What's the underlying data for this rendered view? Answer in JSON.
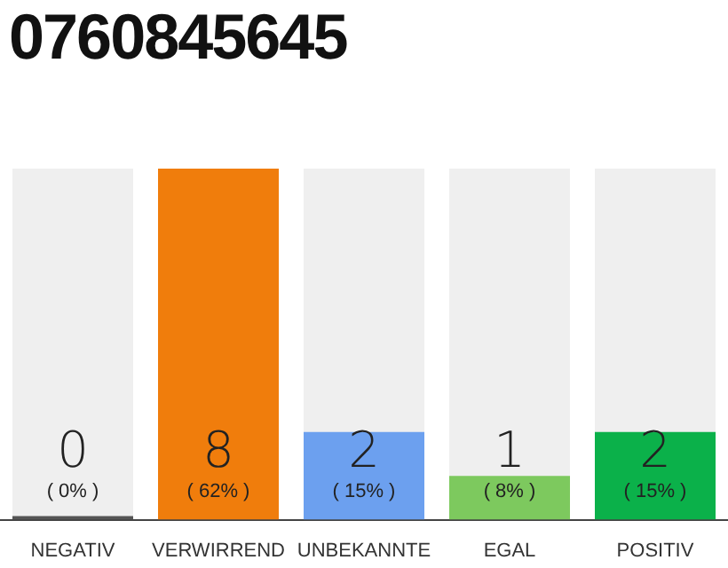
{
  "chart_data": {
    "type": "bar",
    "title": "0760845645",
    "categories": [
      "NEGATIV",
      "VERWIRREND",
      "UNBEKANNTE",
      "EGAL",
      "POSITIV"
    ],
    "values": [
      0,
      8,
      2,
      1,
      2
    ],
    "colors": [
      "#555555",
      "#f07d0c",
      "#6ca0ef",
      "#7dc95e",
      "#0bb14a"
    ],
    "annotations": [
      "( 0% )",
      "( 62% )",
      "( 15% )",
      "( 8% )",
      "( 15% )"
    ],
    "data_labels": true,
    "tick_labels": "x",
    "grid": false,
    "legend": false
  }
}
